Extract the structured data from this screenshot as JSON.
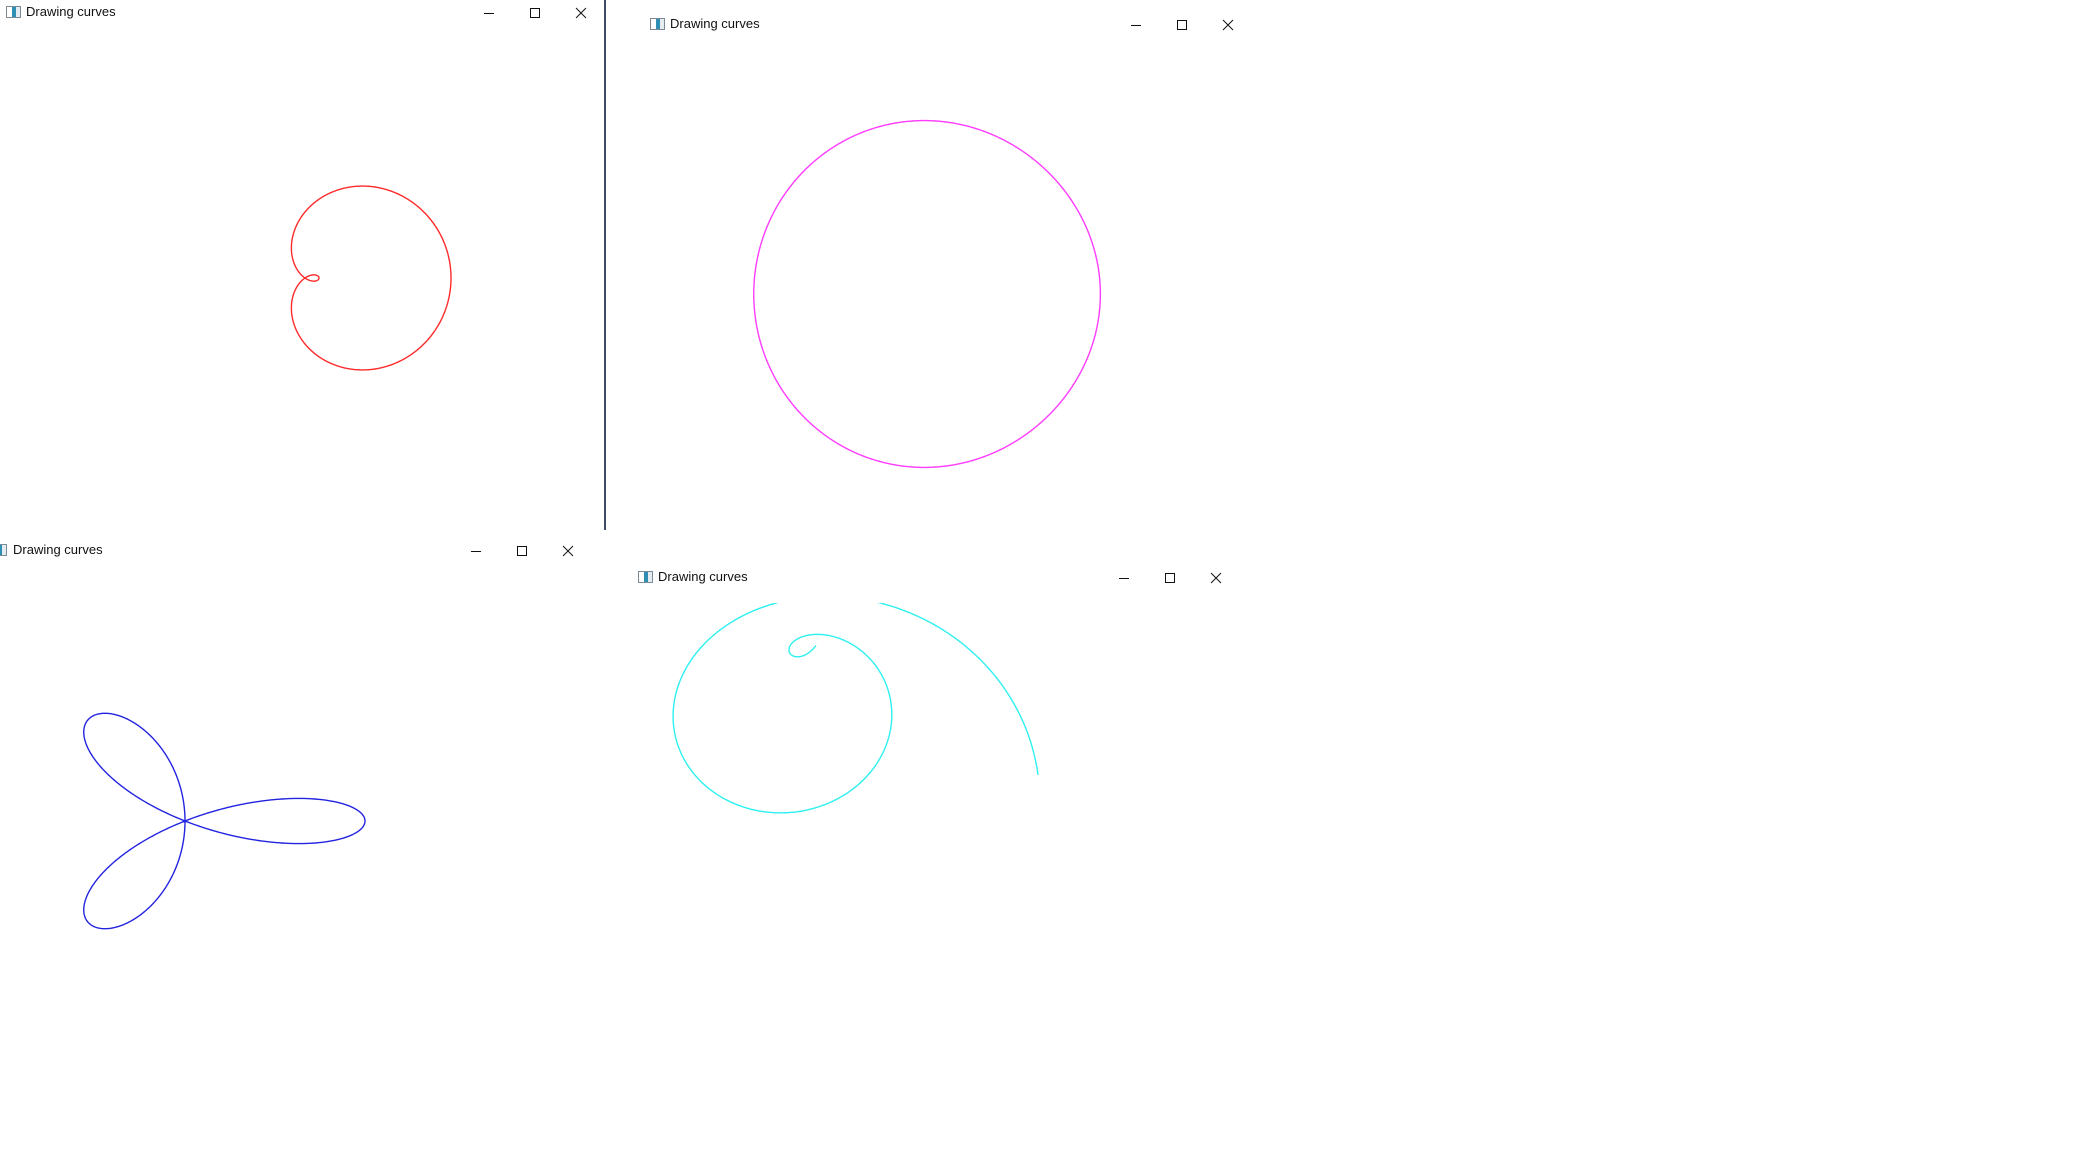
{
  "windows": [
    {
      "id": "top-left",
      "title": "Drawing curves",
      "curve": "limacon",
      "curve_color": "#ff2a2a"
    },
    {
      "id": "top-right",
      "title": "Drawing curves",
      "curve": "nephroid-cardioid",
      "curve_color": "#ff3cff"
    },
    {
      "id": "bottom-left",
      "title": "Drawing curves",
      "curve": "trefoil-rose",
      "curve_color": "#2424e0"
    },
    {
      "id": "bottom-right",
      "title": "Drawing curves",
      "curve": "spiral",
      "curve_color": "#2ef0f0"
    }
  ],
  "icons": {
    "minimize": "minimize-icon",
    "maximize": "maximize-icon",
    "close": "close-icon",
    "app": "app-icon"
  }
}
